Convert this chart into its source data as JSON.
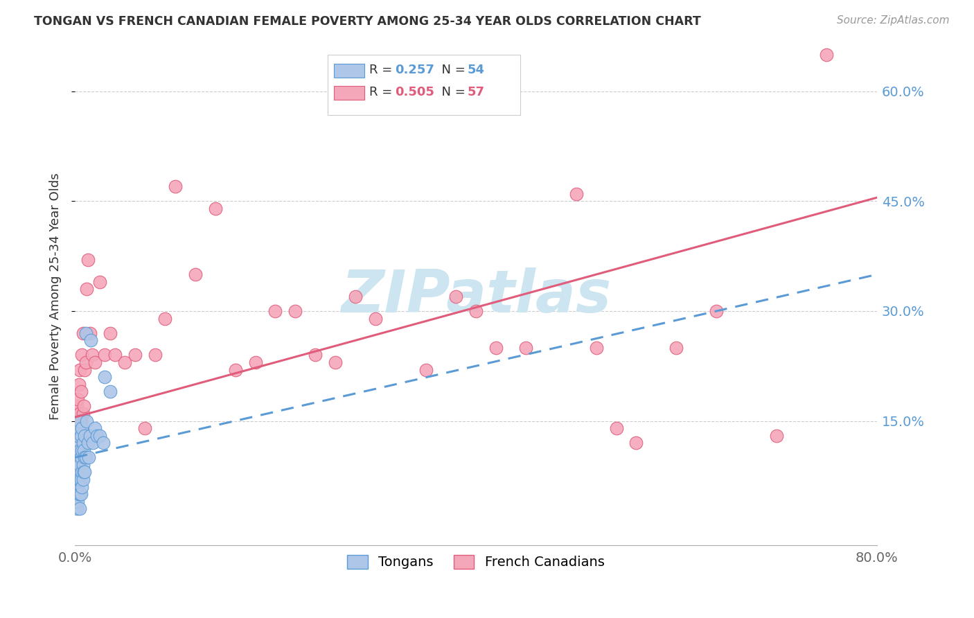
{
  "title": "TONGAN VS FRENCH CANADIAN FEMALE POVERTY AMONG 25-34 YEAR OLDS CORRELATION CHART",
  "source": "Source: ZipAtlas.com",
  "ylabel": "Female Poverty Among 25-34 Year Olds",
  "tongan_R": 0.257,
  "tongan_N": 54,
  "french_R": 0.505,
  "french_N": 57,
  "xlim": [
    0.0,
    0.8
  ],
  "ylim": [
    -0.02,
    0.66
  ],
  "right_yticks": [
    0.15,
    0.3,
    0.45,
    0.6
  ],
  "right_yticklabels": [
    "15.0%",
    "30.0%",
    "45.0%",
    "60.0%"
  ],
  "background_color": "#ffffff",
  "grid_color": "#cccccc",
  "tongan_color": "#aec6e8",
  "tongan_edge_color": "#5b9bd5",
  "french_color": "#f4a7b9",
  "french_edge_color": "#e05c7a",
  "tongan_line_color": "#5b9bd5",
  "french_line_color": "#e05c7a",
  "watermark_color": "#cce5f0",
  "tongan_x": [
    0.001,
    0.001,
    0.001,
    0.002,
    0.002,
    0.002,
    0.002,
    0.002,
    0.003,
    0.003,
    0.003,
    0.003,
    0.003,
    0.004,
    0.004,
    0.004,
    0.004,
    0.004,
    0.005,
    0.005,
    0.005,
    0.005,
    0.005,
    0.005,
    0.006,
    0.006,
    0.006,
    0.006,
    0.007,
    0.007,
    0.007,
    0.007,
    0.008,
    0.008,
    0.008,
    0.009,
    0.009,
    0.01,
    0.01,
    0.01,
    0.011,
    0.011,
    0.012,
    0.013,
    0.014,
    0.015,
    0.016,
    0.018,
    0.02,
    0.022,
    0.025,
    0.028,
    0.03,
    0.035
  ],
  "tongan_y": [
    0.04,
    0.06,
    0.08,
    0.03,
    0.05,
    0.07,
    0.1,
    0.12,
    0.04,
    0.06,
    0.07,
    0.09,
    0.13,
    0.05,
    0.07,
    0.08,
    0.1,
    0.14,
    0.03,
    0.05,
    0.07,
    0.09,
    0.11,
    0.15,
    0.05,
    0.07,
    0.1,
    0.13,
    0.06,
    0.08,
    0.11,
    0.14,
    0.07,
    0.09,
    0.12,
    0.08,
    0.11,
    0.08,
    0.1,
    0.13,
    0.1,
    0.27,
    0.15,
    0.12,
    0.1,
    0.13,
    0.26,
    0.12,
    0.14,
    0.13,
    0.13,
    0.12,
    0.21,
    0.19
  ],
  "french_x": [
    0.001,
    0.001,
    0.002,
    0.002,
    0.003,
    0.003,
    0.004,
    0.004,
    0.005,
    0.005,
    0.006,
    0.006,
    0.007,
    0.007,
    0.008,
    0.008,
    0.009,
    0.01,
    0.011,
    0.012,
    0.013,
    0.015,
    0.017,
    0.02,
    0.025,
    0.03,
    0.035,
    0.04,
    0.05,
    0.06,
    0.07,
    0.08,
    0.09,
    0.1,
    0.12,
    0.14,
    0.16,
    0.18,
    0.2,
    0.22,
    0.24,
    0.26,
    0.28,
    0.3,
    0.35,
    0.38,
    0.4,
    0.42,
    0.45,
    0.5,
    0.52,
    0.54,
    0.56,
    0.6,
    0.64,
    0.7,
    0.75
  ],
  "french_y": [
    0.14,
    0.16,
    0.13,
    0.17,
    0.15,
    0.18,
    0.14,
    0.2,
    0.16,
    0.22,
    0.15,
    0.19,
    0.24,
    0.14,
    0.27,
    0.16,
    0.17,
    0.22,
    0.23,
    0.33,
    0.37,
    0.27,
    0.24,
    0.23,
    0.34,
    0.24,
    0.27,
    0.24,
    0.23,
    0.24,
    0.14,
    0.24,
    0.29,
    0.47,
    0.35,
    0.44,
    0.22,
    0.23,
    0.3,
    0.3,
    0.24,
    0.23,
    0.32,
    0.29,
    0.22,
    0.32,
    0.3,
    0.25,
    0.25,
    0.46,
    0.25,
    0.14,
    0.12,
    0.25,
    0.3,
    0.13,
    0.65
  ],
  "tongan_trendline_x0": 0.0,
  "tongan_trendline_y0": 0.1,
  "tongan_trendline_x1": 0.8,
  "tongan_trendline_y1": 0.35,
  "french_trendline_x0": 0.0,
  "french_trendline_y0": 0.155,
  "french_trendline_x1": 0.8,
  "french_trendline_y1": 0.455
}
